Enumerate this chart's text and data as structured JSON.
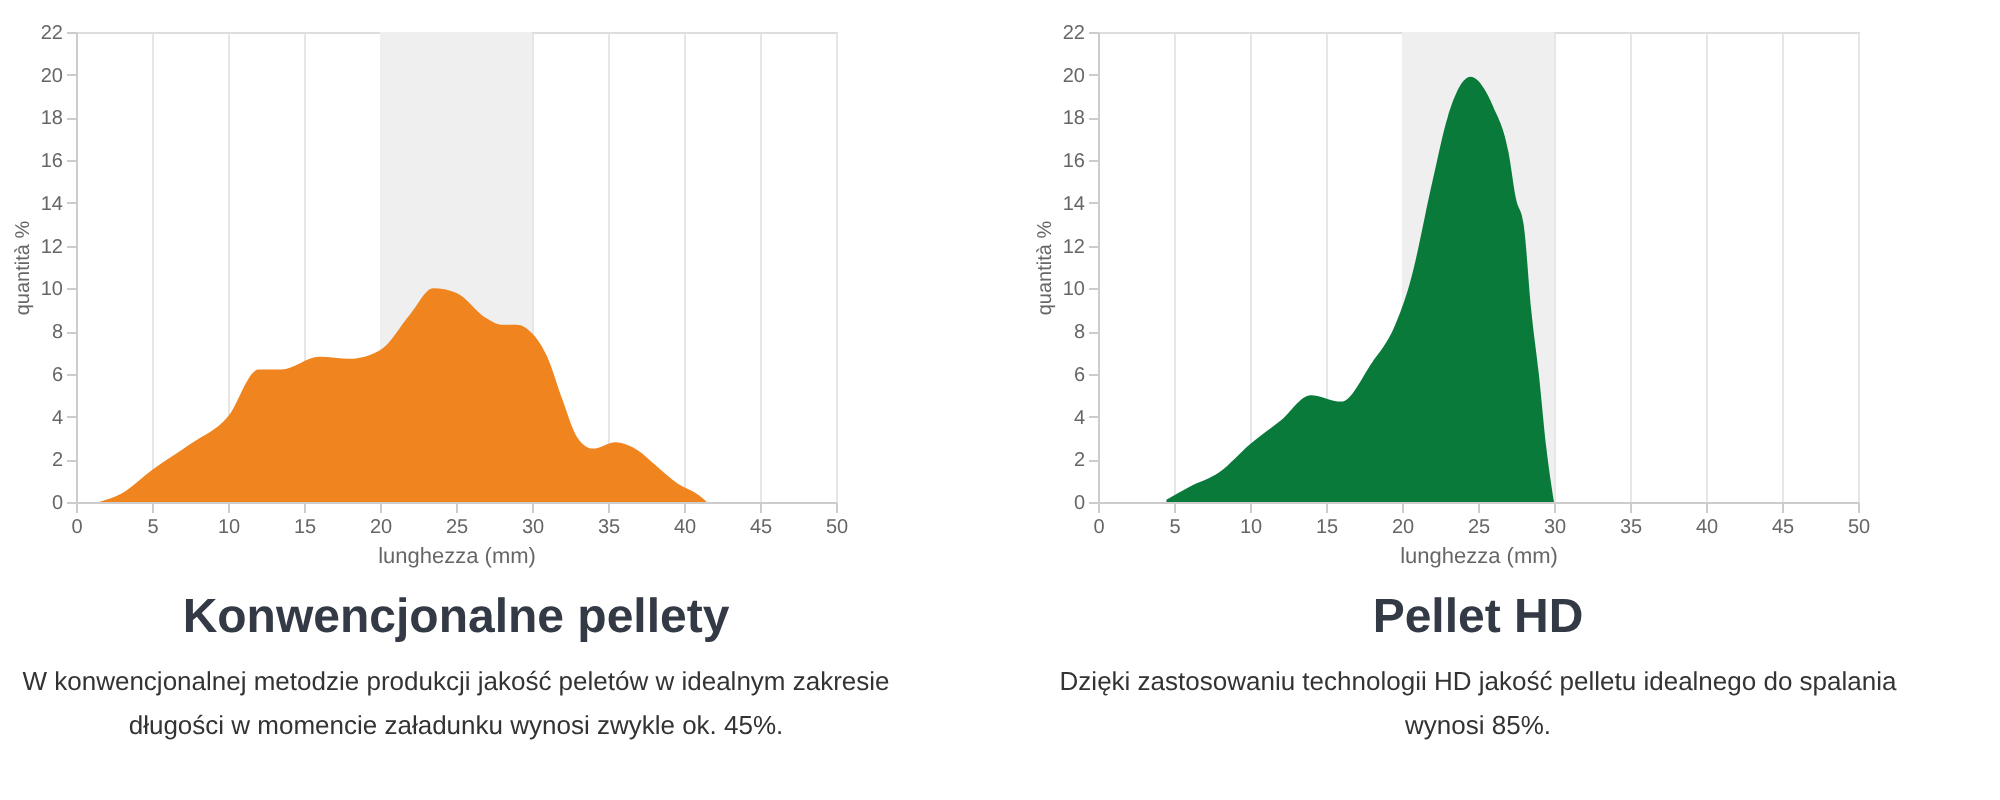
{
  "chart_data": [
    {
      "type": "area",
      "title": "Konwencjonalne pellety",
      "subtitle": "W konwencjonalnej metodzie produkcji jakość peletów w idealnym zakresie długości w momencie załadunku wynosi zwykle ok. 45%.",
      "xlabel": "lunghezza (mm)",
      "ylabel": "quantità %",
      "x": [
        1.5,
        3,
        5,
        7.5,
        10,
        12,
        13.5,
        16,
        18,
        20,
        22,
        23.5,
        25,
        27,
        28,
        29,
        30,
        31,
        32,
        33,
        34,
        35.5,
        37,
        38,
        39.5,
        41,
        41.5
      ],
      "series": [
        {
          "color": "#f0841f",
          "values": [
            0,
            0.4,
            1.5,
            2.7,
            4,
            6.2,
            6.2,
            6.8,
            6.7,
            7.1,
            8.8,
            10,
            9.8,
            8.6,
            8.3,
            8.3,
            7.9,
            6.8,
            4.8,
            3,
            2.5,
            2.8,
            2.4,
            1.8,
            0.9,
            0.3,
            0
          ]
        }
      ],
      "xlim": [
        0,
        50
      ],
      "xticks": [
        0,
        5,
        10,
        15,
        20,
        25,
        30,
        35,
        40,
        45,
        50
      ],
      "ylim": [
        0,
        22
      ],
      "yticks": [
        0,
        2,
        4,
        6,
        8,
        10,
        12,
        14,
        16,
        18,
        20,
        22
      ],
      "bands": [
        {
          "axis": "x",
          "from": 20,
          "to": 30,
          "color": "#efefef"
        }
      ],
      "grid": "x"
    },
    {
      "type": "area",
      "title": "Pellet HD",
      "subtitle": "Dzięki zastosowaniu technologii HD jakość pelletu idealnego do spalania wynosi 85%.",
      "xlabel": "lunghezza (mm)",
      "ylabel": "quantità %",
      "x": [
        4.5,
        6,
        8,
        10,
        12,
        14,
        16,
        18,
        19.5,
        20.5,
        22,
        23,
        24.5,
        26,
        27,
        27.5,
        28,
        28.5,
        29,
        29.5,
        30
      ],
      "series": [
        {
          "color": "#0a7a3a",
          "values": [
            0.1,
            0.7,
            1.4,
            2.7,
            3.8,
            5,
            4.7,
            6.5,
            8.2,
            10.2,
            15,
            18,
            19.9,
            18.5,
            16.4,
            14.2,
            13,
            9,
            6,
            2.5,
            0
          ]
        }
      ],
      "xlim": [
        0,
        50
      ],
      "xticks": [
        0,
        5,
        10,
        15,
        20,
        25,
        30,
        35,
        40,
        45,
        50
      ],
      "ylim": [
        0,
        22
      ],
      "yticks": [
        0,
        2,
        4,
        6,
        8,
        10,
        12,
        14,
        16,
        18,
        20,
        22
      ],
      "bands": [
        {
          "axis": "x",
          "from": 20,
          "to": 30,
          "color": "#efefef"
        }
      ],
      "grid": "x"
    }
  ]
}
